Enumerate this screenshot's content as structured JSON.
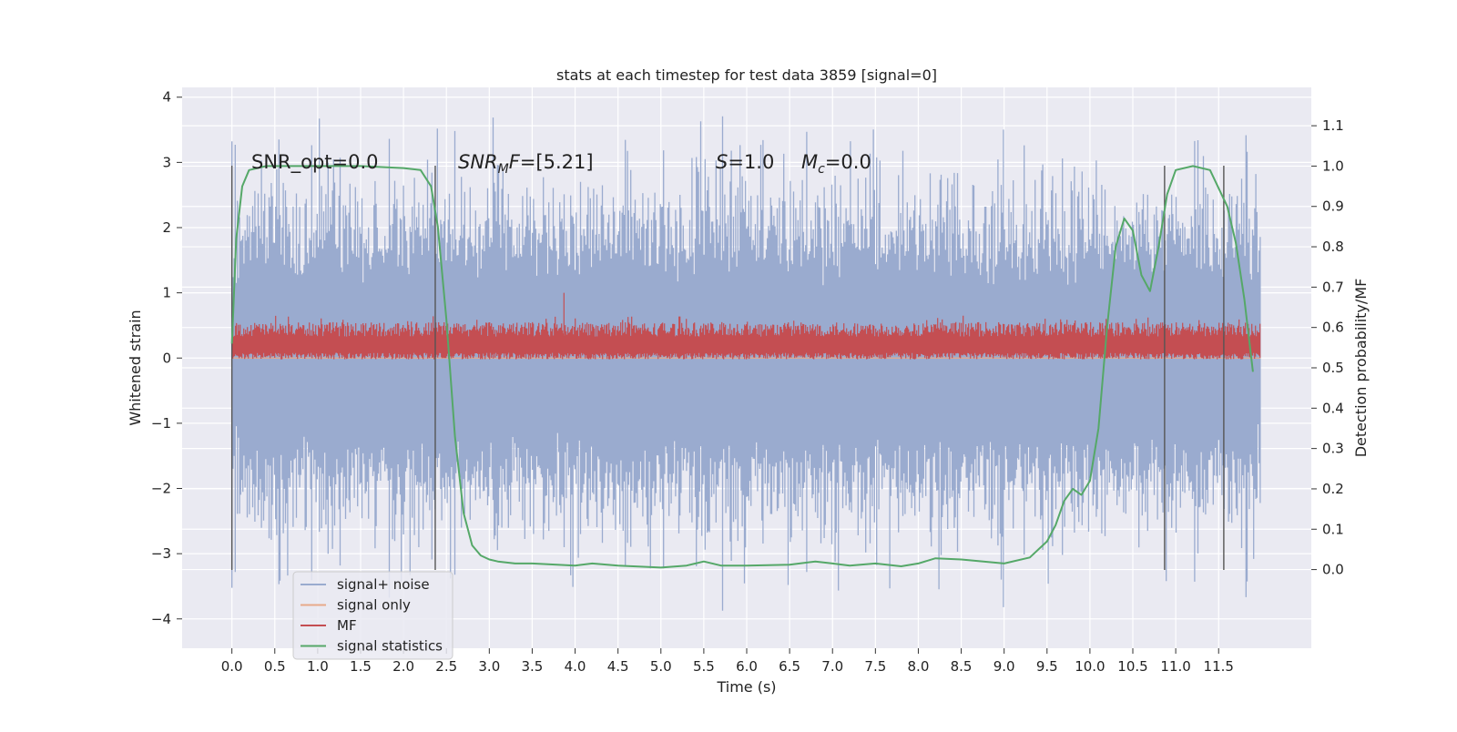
{
  "chart_data": {
    "type": "line",
    "title": "stats at each timestep for test data 3859 [signal=0]",
    "xlabel": "Time (s)",
    "ylabel": "Whitened strain",
    "ylabel_right": "Detection probability/MF",
    "xlim": [
      -0.58,
      12.58
    ],
    "ylim": [
      -4.45,
      4.15
    ],
    "ylim_right": [
      -0.195,
      1.195
    ],
    "x_ticks": [
      "0.0",
      "0.5",
      "1.0",
      "1.5",
      "2.0",
      "2.5",
      "3.0",
      "3.5",
      "4.0",
      "4.5",
      "5.0",
      "5.5",
      "6.0",
      "6.5",
      "7.0",
      "7.5",
      "8.0",
      "8.5",
      "9.0",
      "9.5",
      "10.0",
      "10.5",
      "11.0",
      "11.5"
    ],
    "y_ticks": [
      "−4",
      "−3",
      "−2",
      "−1",
      "0",
      "1",
      "2",
      "3",
      "4"
    ],
    "y_ticks_right": [
      "0.0",
      "0.1",
      "0.2",
      "0.3",
      "0.4",
      "0.5",
      "0.6",
      "0.7",
      "0.8",
      "0.9",
      "1.0",
      "1.1"
    ],
    "grid": true,
    "legend_position": "lower-left",
    "colors": {
      "background": "#eaeaf2",
      "grid": "#ffffff",
      "noise": "#9aabcf",
      "signal_only": "#e8a98a",
      "mf": "#c44e52",
      "statistics": "#55a868",
      "marker_lines": "#555555"
    },
    "annotations": [
      {
        "text": "SNR_opt=0.0"
      },
      {
        "text": "SNR",
        "sub": "M",
        "suffix": "F=[5.21]"
      },
      {
        "text": "S",
        "suffix": "=1.0"
      },
      {
        "text": "M",
        "sub": "c",
        "suffix": "=0.0"
      }
    ],
    "vertical_lines_x": [
      0.0,
      2.37,
      10.87,
      11.56
    ],
    "vertical_lines_yrange": [
      -3.25,
      2.95
    ],
    "series": [
      {
        "name": "signal+ noise",
        "axis": "left",
        "style": "noise-band",
        "x_range": [
          0.0,
          11.99
        ],
        "envelope_sigma": 1.0,
        "peak_max": 3.8,
        "peak_min": -4.1
      },
      {
        "name": "signal only",
        "axis": "left",
        "x_range": [
          0.0,
          11.99
        ],
        "values_constant": 0.0
      },
      {
        "name": "MF",
        "axis": "left",
        "style": "mf-band",
        "x_range": [
          0.0,
          11.99
        ],
        "band_low": 0.0,
        "band_high": 0.45,
        "peak_max": 1.0
      },
      {
        "name": "signal statistics",
        "axis": "right",
        "x": [
          0.0,
          0.05,
          0.12,
          0.2,
          0.4,
          1.0,
          1.5,
          2.0,
          2.2,
          2.32,
          2.4,
          2.5,
          2.6,
          2.7,
          2.8,
          2.9,
          3.0,
          3.1,
          3.3,
          3.5,
          4.0,
          4.2,
          4.5,
          5.0,
          5.3,
          5.5,
          5.7,
          6.0,
          6.5,
          6.8,
          7.0,
          7.2,
          7.5,
          7.8,
          8.0,
          8.2,
          8.5,
          9.0,
          9.3,
          9.5,
          9.6,
          9.7,
          9.8,
          9.9,
          10.0,
          10.1,
          10.2,
          10.3,
          10.4,
          10.5,
          10.6,
          10.7,
          10.8,
          10.9,
          11.0,
          11.2,
          11.4,
          11.6,
          11.7,
          11.8,
          11.9
        ],
        "values": [
          0.56,
          0.82,
          0.95,
          0.99,
          1.0,
          1.0,
          1.0,
          0.995,
          0.99,
          0.95,
          0.85,
          0.62,
          0.33,
          0.14,
          0.06,
          0.035,
          0.025,
          0.02,
          0.015,
          0.015,
          0.01,
          0.015,
          0.01,
          0.005,
          0.01,
          0.02,
          0.01,
          0.01,
          0.012,
          0.02,
          0.015,
          0.01,
          0.015,
          0.008,
          0.015,
          0.028,
          0.025,
          0.015,
          0.03,
          0.07,
          0.11,
          0.17,
          0.2,
          0.185,
          0.22,
          0.35,
          0.6,
          0.8,
          0.87,
          0.84,
          0.73,
          0.69,
          0.8,
          0.93,
          0.99,
          1.0,
          0.99,
          0.9,
          0.81,
          0.67,
          0.49
        ]
      }
    ]
  }
}
